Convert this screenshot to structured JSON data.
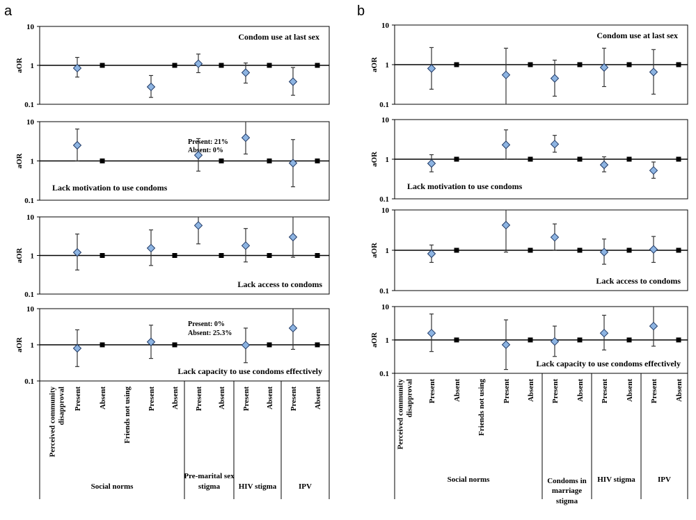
{
  "chart_data": [
    {
      "type": "scatter",
      "panel_label": "a",
      "y_axis_label": "aOR",
      "y_scale": "log",
      "ylim": [
        0.1,
        10
      ],
      "y_ticks": [
        "10",
        "1",
        "0.1"
      ],
      "reference_line": 1,
      "categories": [
        "Perceived community disapproval",
        "Present",
        "Absent",
        "Friends not using",
        "Present",
        "Absent",
        "Present",
        "Absent",
        "Present",
        "Absent",
        "Present",
        "Absent"
      ],
      "groups": [
        {
          "label": "Social norms",
          "span": [
            0,
            5
          ]
        },
        {
          "label": "Pre-marital sex stigma",
          "span": [
            6,
            7
          ]
        },
        {
          "label": "HIV stigma",
          "span": [
            8,
            9
          ]
        },
        {
          "label": "IPV",
          "span": [
            10,
            11
          ]
        }
      ],
      "subplots": [
        {
          "title": "Condom use at last sex",
          "title_pos": "top-right",
          "points": [
            {
              "x": 1,
              "est": 0.85,
              "lo": 0.5,
              "hi": 1.6,
              "marker": "diamond"
            },
            {
              "x": 2,
              "est": 1,
              "marker": "square"
            },
            {
              "x": 4,
              "est": 0.28,
              "lo": 0.15,
              "hi": 0.55,
              "marker": "diamond"
            },
            {
              "x": 5,
              "est": 1,
              "marker": "square"
            },
            {
              "x": 6,
              "est": 1.1,
              "lo": 0.65,
              "hi": 1.95,
              "marker": "diamond"
            },
            {
              "x": 7,
              "est": 1,
              "marker": "square"
            },
            {
              "x": 8,
              "est": 0.65,
              "lo": 0.35,
              "hi": 1.15,
              "marker": "diamond"
            },
            {
              "x": 9,
              "est": 1,
              "marker": "square"
            },
            {
              "x": 10,
              "est": 0.38,
              "lo": 0.17,
              "hi": 0.88,
              "marker": "diamond"
            },
            {
              "x": 11,
              "est": 1,
              "marker": "square"
            }
          ]
        },
        {
          "title": "Lack motivation to use condoms",
          "title_pos": "bottom-left",
          "note": [
            "Present: 21%",
            "Absent: 0%"
          ],
          "points": [
            {
              "x": 1,
              "est": 2.5,
              "lo": 1.0,
              "hi": 6.5,
              "marker": "diamond"
            },
            {
              "x": 2,
              "est": 1,
              "marker": "square"
            },
            {
              "x": 6,
              "est": 1.4,
              "lo": 0.55,
              "hi": 3.7,
              "marker": "diamond"
            },
            {
              "x": 7,
              "est": 1,
              "marker": "square"
            },
            {
              "x": 8,
              "est": 3.9,
              "lo": 1.5,
              "hi": 10,
              "marker": "diamond"
            },
            {
              "x": 9,
              "est": 1,
              "marker": "square"
            },
            {
              "x": 10,
              "est": 0.88,
              "lo": 0.22,
              "hi": 3.5,
              "marker": "diamond"
            },
            {
              "x": 11,
              "est": 1,
              "marker": "square"
            }
          ]
        },
        {
          "title": "Lack access to condoms",
          "title_pos": "bottom-right",
          "points": [
            {
              "x": 1,
              "est": 1.2,
              "lo": 0.42,
              "hi": 3.6,
              "marker": "diamond"
            },
            {
              "x": 2,
              "est": 1,
              "marker": "square"
            },
            {
              "x": 4,
              "est": 1.55,
              "lo": 0.55,
              "hi": 4.6,
              "marker": "diamond"
            },
            {
              "x": 5,
              "est": 1,
              "marker": "square"
            },
            {
              "x": 6,
              "est": 6.0,
              "lo": 2.0,
              "hi": 10,
              "marker": "diamond"
            },
            {
              "x": 7,
              "est": 1,
              "marker": "square"
            },
            {
              "x": 8,
              "est": 1.8,
              "lo": 0.68,
              "hi": 5.0,
              "marker": "diamond"
            },
            {
              "x": 9,
              "est": 1,
              "marker": "square"
            },
            {
              "x": 10,
              "est": 3.0,
              "lo": 0.9,
              "hi": 10,
              "marker": "diamond"
            },
            {
              "x": 11,
              "est": 1,
              "marker": "square"
            }
          ]
        },
        {
          "title": "Lack capacity to use condoms effectively",
          "title_pos": "bottom-right",
          "note": [
            "Present: 0%",
            "Absent: 25.3%"
          ],
          "points": [
            {
              "x": 1,
              "est": 0.8,
              "lo": 0.25,
              "hi": 2.6,
              "marker": "diamond"
            },
            {
              "x": 2,
              "est": 1,
              "marker": "square"
            },
            {
              "x": 4,
              "est": 1.2,
              "lo": 0.42,
              "hi": 3.5,
              "marker": "diamond"
            },
            {
              "x": 5,
              "est": 1,
              "marker": "square"
            },
            {
              "x": 8,
              "est": 0.98,
              "lo": 0.32,
              "hi": 2.9,
              "marker": "diamond"
            },
            {
              "x": 9,
              "est": 1,
              "marker": "square"
            },
            {
              "x": 10,
              "est": 2.9,
              "lo": 0.75,
              "hi": 10,
              "marker": "diamond"
            },
            {
              "x": 11,
              "est": 1,
              "marker": "square"
            }
          ]
        }
      ]
    },
    {
      "type": "scatter",
      "panel_label": "b",
      "y_axis_label": "aOR",
      "y_scale": "log",
      "ylim": [
        0.1,
        10
      ],
      "y_ticks": [
        "10",
        "1",
        "0.1"
      ],
      "reference_line": 1,
      "categories": [
        "Perceived community disapproval",
        "Present",
        "Absent",
        "Friends not using",
        "Present",
        "Absent",
        "Present",
        "Absent",
        "Present",
        "Absent",
        "Present",
        "Absent"
      ],
      "groups": [
        {
          "label": "Social norms",
          "span": [
            0,
            5
          ]
        },
        {
          "label": "Condoms in marriage stigma",
          "span": [
            6,
            7
          ]
        },
        {
          "label": "HIV stigma",
          "span": [
            8,
            9
          ]
        },
        {
          "label": "IPV",
          "span": [
            10,
            11
          ]
        }
      ],
      "subplots": [
        {
          "title": "Condom use at last sex",
          "title_pos": "top-right",
          "points": [
            {
              "x": 1,
              "est": 0.8,
              "lo": 0.24,
              "hi": 2.7,
              "marker": "diamond"
            },
            {
              "x": 2,
              "est": 1,
              "marker": "square"
            },
            {
              "x": 4,
              "est": 0.55,
              "lo": 0.1,
              "hi": 2.6,
              "marker": "diamond"
            },
            {
              "x": 5,
              "est": 1,
              "marker": "square"
            },
            {
              "x": 6,
              "est": 0.45,
              "lo": 0.16,
              "hi": 1.3,
              "marker": "diamond"
            },
            {
              "x": 7,
              "est": 1,
              "marker": "square"
            },
            {
              "x": 8,
              "est": 0.85,
              "lo": 0.28,
              "hi": 2.6,
              "marker": "diamond"
            },
            {
              "x": 9,
              "est": 1,
              "marker": "square"
            },
            {
              "x": 10,
              "est": 0.65,
              "lo": 0.18,
              "hi": 2.4,
              "marker": "diamond"
            },
            {
              "x": 11,
              "est": 1,
              "marker": "square"
            }
          ]
        },
        {
          "title": "Lack motivation to use condoms",
          "title_pos": "bottom-left",
          "points": [
            {
              "x": 1,
              "est": 0.78,
              "lo": 0.48,
              "hi": 1.3,
              "marker": "diamond"
            },
            {
              "x": 2,
              "est": 1,
              "marker": "square"
            },
            {
              "x": 4,
              "est": 2.3,
              "lo": 1.0,
              "hi": 5.5,
              "marker": "diamond"
            },
            {
              "x": 5,
              "est": 1,
              "marker": "square"
            },
            {
              "x": 6,
              "est": 2.4,
              "lo": 1.5,
              "hi": 4.0,
              "marker": "diamond"
            },
            {
              "x": 7,
              "est": 1,
              "marker": "square"
            },
            {
              "x": 8,
              "est": 0.72,
              "lo": 0.48,
              "hi": 1.15,
              "marker": "diamond"
            },
            {
              "x": 9,
              "est": 1,
              "marker": "square"
            },
            {
              "x": 10,
              "est": 0.52,
              "lo": 0.33,
              "hi": 0.85,
              "marker": "diamond"
            },
            {
              "x": 11,
              "est": 1,
              "marker": "square"
            }
          ]
        },
        {
          "title": "Lack access to condoms",
          "title_pos": "bottom-right",
          "points": [
            {
              "x": 1,
              "est": 0.82,
              "lo": 0.5,
              "hi": 1.35,
              "marker": "diamond"
            },
            {
              "x": 2,
              "est": 1,
              "marker": "square"
            },
            {
              "x": 4,
              "est": 4.2,
              "lo": 0.9,
              "hi": 10,
              "marker": "diamond"
            },
            {
              "x": 5,
              "est": 1,
              "marker": "square"
            },
            {
              "x": 6,
              "est": 2.1,
              "lo": 1.0,
              "hi": 4.5,
              "marker": "diamond"
            },
            {
              "x": 7,
              "est": 1,
              "marker": "square"
            },
            {
              "x": 8,
              "est": 0.9,
              "lo": 0.45,
              "hi": 1.9,
              "marker": "diamond"
            },
            {
              "x": 9,
              "est": 1,
              "marker": "square"
            },
            {
              "x": 10,
              "est": 1.05,
              "lo": 0.5,
              "hi": 2.2,
              "marker": "diamond"
            },
            {
              "x": 11,
              "est": 1,
              "marker": "square"
            }
          ]
        },
        {
          "title": "Lack capacity to use condoms effectively",
          "title_pos": "bottom-right",
          "points": [
            {
              "x": 1,
              "est": 1.6,
              "lo": 0.45,
              "hi": 6.0,
              "marker": "diamond"
            },
            {
              "x": 2,
              "est": 1,
              "marker": "square"
            },
            {
              "x": 4,
              "est": 0.72,
              "lo": 0.13,
              "hi": 4.0,
              "marker": "diamond"
            },
            {
              "x": 5,
              "est": 1,
              "marker": "square"
            },
            {
              "x": 6,
              "est": 0.9,
              "lo": 0.32,
              "hi": 2.6,
              "marker": "diamond"
            },
            {
              "x": 7,
              "est": 1,
              "marker": "square"
            },
            {
              "x": 8,
              "est": 1.6,
              "lo": 0.5,
              "hi": 5.5,
              "marker": "diamond"
            },
            {
              "x": 9,
              "est": 1,
              "marker": "square"
            },
            {
              "x": 10,
              "est": 2.6,
              "lo": 0.65,
              "hi": 10,
              "marker": "diamond"
            },
            {
              "x": 11,
              "est": 1,
              "marker": "square"
            }
          ]
        }
      ]
    }
  ]
}
